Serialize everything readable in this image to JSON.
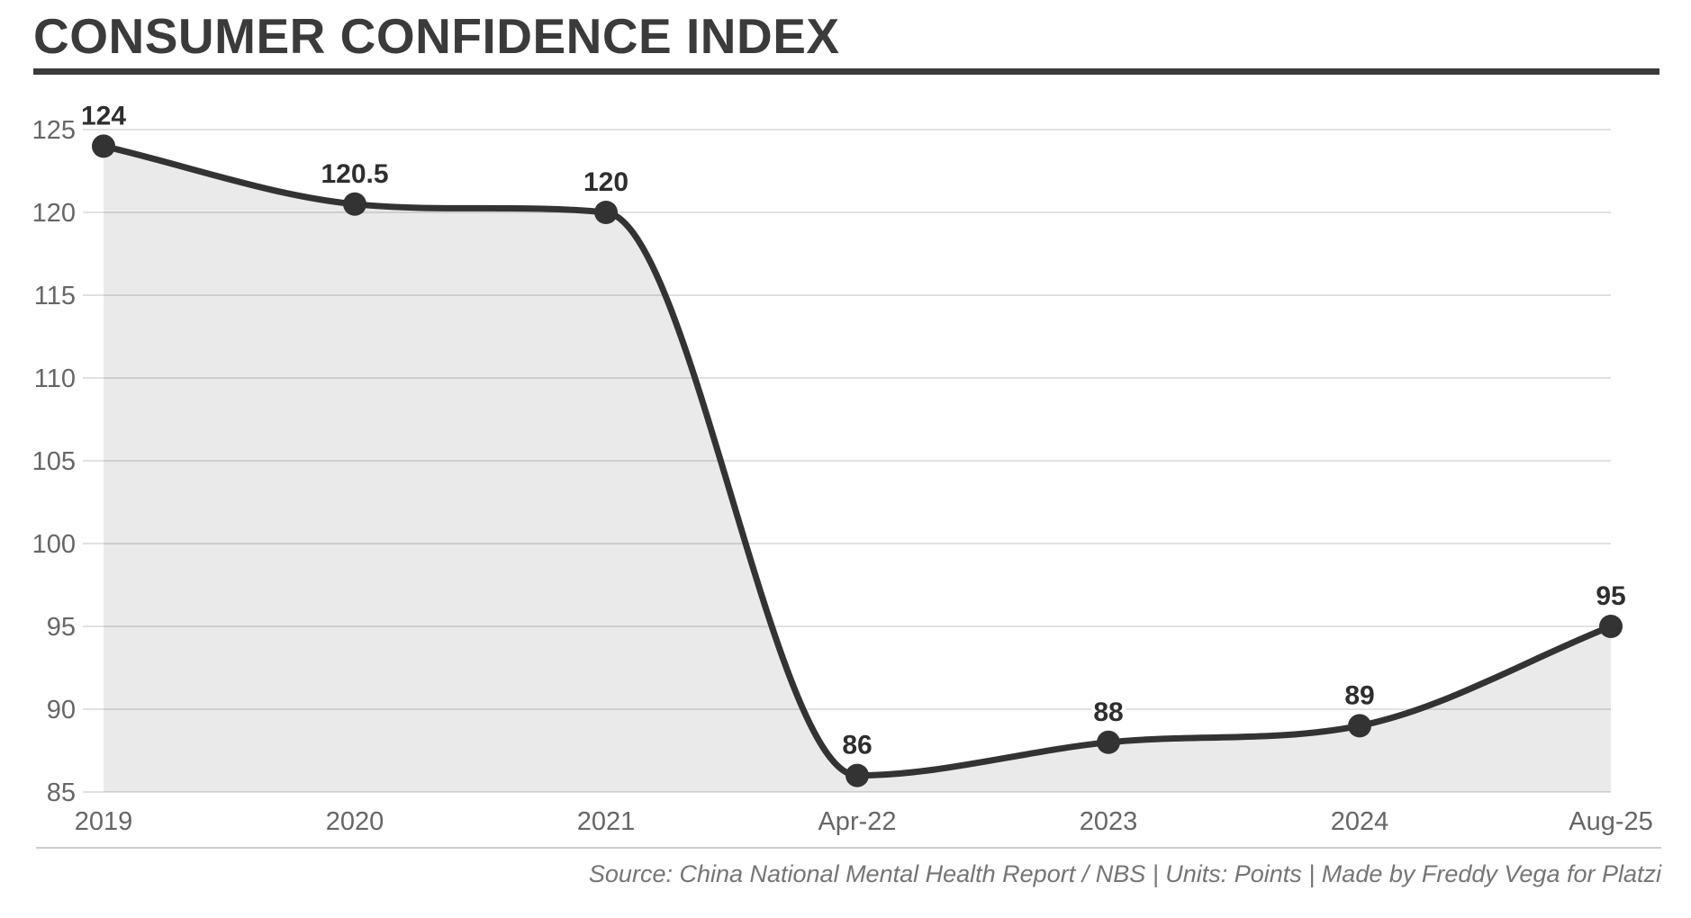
{
  "header": {
    "title": "CONSUMER CONFIDENCE INDEX"
  },
  "footer": {
    "source_line": "Source: China National Mental Health Report / NBS | Units: Points | Made by Freddy Vega for Platzi"
  },
  "colors": {
    "title_text": "#3b3b3b",
    "title_rule": "#3b3b3b",
    "line": "#333333",
    "marker": "#333333",
    "area_fill": "rgba(0,0,0,0.082)",
    "grid": "#e1e1e1",
    "axis_text": "#666666",
    "point_label_text": "#2e2e2e",
    "point_label_outline": "#ffffff",
    "footer_rule": "#cccccc",
    "source_text": "#757575",
    "background": "#ffffff"
  },
  "chart_data": {
    "type": "area",
    "title": "CONSUMER CONFIDENCE INDEX",
    "categories": [
      "2019",
      "2020",
      "2021",
      "Apr-22",
      "2023",
      "2024",
      "Aug-25"
    ],
    "values": [
      124,
      120.5,
      120,
      86,
      88,
      89,
      95
    ],
    "point_labels": [
      "124",
      "120.5",
      "120",
      "86",
      "88",
      "89",
      "95"
    ],
    "xlabel": "",
    "ylabel": "",
    "units": "Points",
    "ylim": [
      85,
      125
    ],
    "yticks": [
      85,
      90,
      95,
      100,
      105,
      110,
      115,
      120,
      125
    ],
    "grid": "horizontal",
    "legend_position": "none",
    "line_smoothing": true,
    "marker_style": "filled-circle"
  }
}
